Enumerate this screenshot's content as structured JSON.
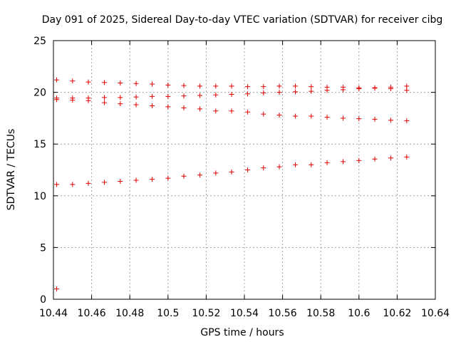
{
  "chart_data": {
    "type": "scatter",
    "title": "Day 091 of 2025, Sidereal Day-to-day VTEC variation (SDTVAR) for receiver cibg",
    "xlabel": "GPS time / hours",
    "ylabel": "SDTVAR / TECUs",
    "xlim": [
      10.44,
      10.64
    ],
    "ylim": [
      0,
      25
    ],
    "x_ticks": [
      "10.44",
      "10.46",
      "10.48",
      "10.5",
      "10.52",
      "10.54",
      "10.56",
      "10.58",
      "10.6",
      "10.62",
      "10.64"
    ],
    "y_ticks": [
      "0",
      "5",
      "10",
      "15",
      "20",
      "25"
    ],
    "grid": true,
    "marker": "+",
    "color": "#e00000",
    "x": [
      10.4417,
      10.45,
      10.4583,
      10.4667,
      10.475,
      10.4833,
      10.4917,
      10.5,
      10.5083,
      10.5167,
      10.525,
      10.5333,
      10.5417,
      10.55,
      10.5583,
      10.5667,
      10.575,
      10.5833,
      10.5917,
      10.6,
      10.6083,
      10.6167,
      10.625
    ],
    "series": [
      {
        "name": "series-1",
        "values": [
          21.2,
          21.1,
          21.0,
          20.95,
          20.9,
          20.85,
          20.8,
          20.7,
          20.65,
          20.6,
          20.6,
          20.6,
          20.55,
          20.55,
          20.6,
          20.6,
          20.55,
          20.5,
          20.5,
          20.45,
          20.45,
          20.5,
          20.6
        ]
      },
      {
        "name": "series-2",
        "values": [
          19.45,
          19.45,
          19.45,
          19.5,
          19.5,
          19.55,
          19.6,
          19.6,
          19.65,
          19.7,
          19.75,
          19.8,
          19.85,
          19.95,
          20.0,
          20.05,
          20.1,
          20.2,
          20.25,
          20.35,
          20.4,
          20.35,
          20.2
        ]
      },
      {
        "name": "series-3",
        "values": [
          19.3,
          19.25,
          19.2,
          19.0,
          18.9,
          18.8,
          18.7,
          18.6,
          18.5,
          18.4,
          18.2,
          18.2,
          18.1,
          17.9,
          17.8,
          17.7,
          17.7,
          17.6,
          17.5,
          17.45,
          17.4,
          17.3,
          17.25
        ]
      },
      {
        "name": "series-4",
        "values": [
          11.1,
          11.1,
          11.2,
          11.3,
          11.4,
          11.5,
          11.6,
          11.7,
          11.9,
          12.0,
          12.2,
          12.3,
          12.5,
          12.7,
          12.8,
          13.0,
          13.0,
          13.2,
          13.3,
          13.4,
          13.55,
          13.65,
          13.75
        ]
      },
      {
        "name": "outlier",
        "x": [
          10.4417
        ],
        "values": [
          1.0
        ]
      }
    ]
  }
}
